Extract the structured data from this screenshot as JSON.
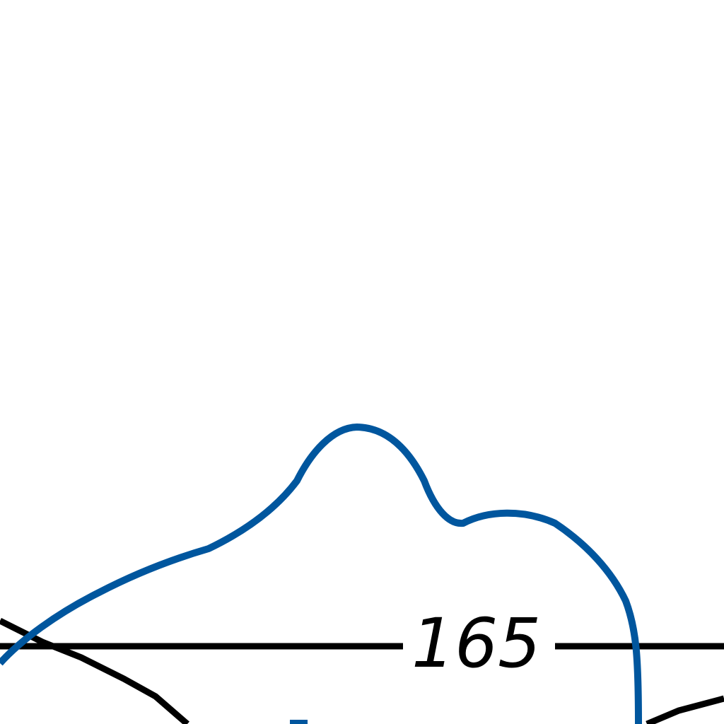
{
  "diagram": {
    "contour_label": "165",
    "colors": {
      "boundary": "#00569e",
      "line": "#000000",
      "background": "#ffffff"
    }
  }
}
